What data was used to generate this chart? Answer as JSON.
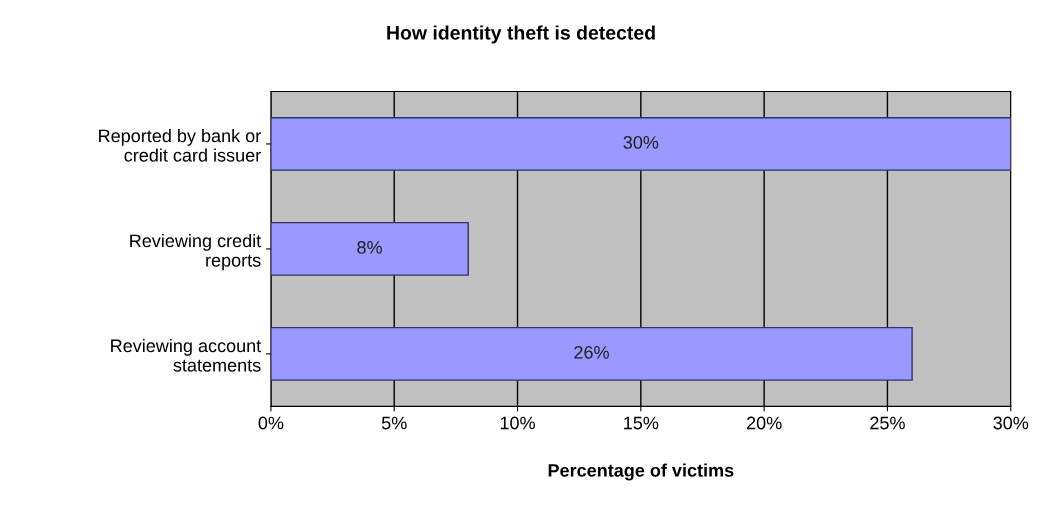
{
  "chart_data": {
    "type": "bar",
    "orientation": "horizontal",
    "title": "How identity theft is detected",
    "xlabel": "Percentage of victims",
    "categories": [
      "Reported by bank or\ncredit card issuer",
      "Reviewing credit\nreports",
      "Reviewing account\nstatements"
    ],
    "values": [
      30,
      8,
      26
    ],
    "color": "#9999ff",
    "value_labels": [
      "30%",
      "8%",
      "26%"
    ],
    "xlim": [
      0,
      30
    ],
    "xticks": [
      {
        "value": 0,
        "label": "0%"
      },
      {
        "value": 5,
        "label": "5%"
      },
      {
        "value": 10,
        "label": "10%"
      },
      {
        "value": 15,
        "label": "15%"
      },
      {
        "value": 20,
        "label": "20%"
      },
      {
        "value": 25,
        "label": "25%"
      },
      {
        "value": 30,
        "label": "30%"
      }
    ],
    "grid": "x"
  }
}
